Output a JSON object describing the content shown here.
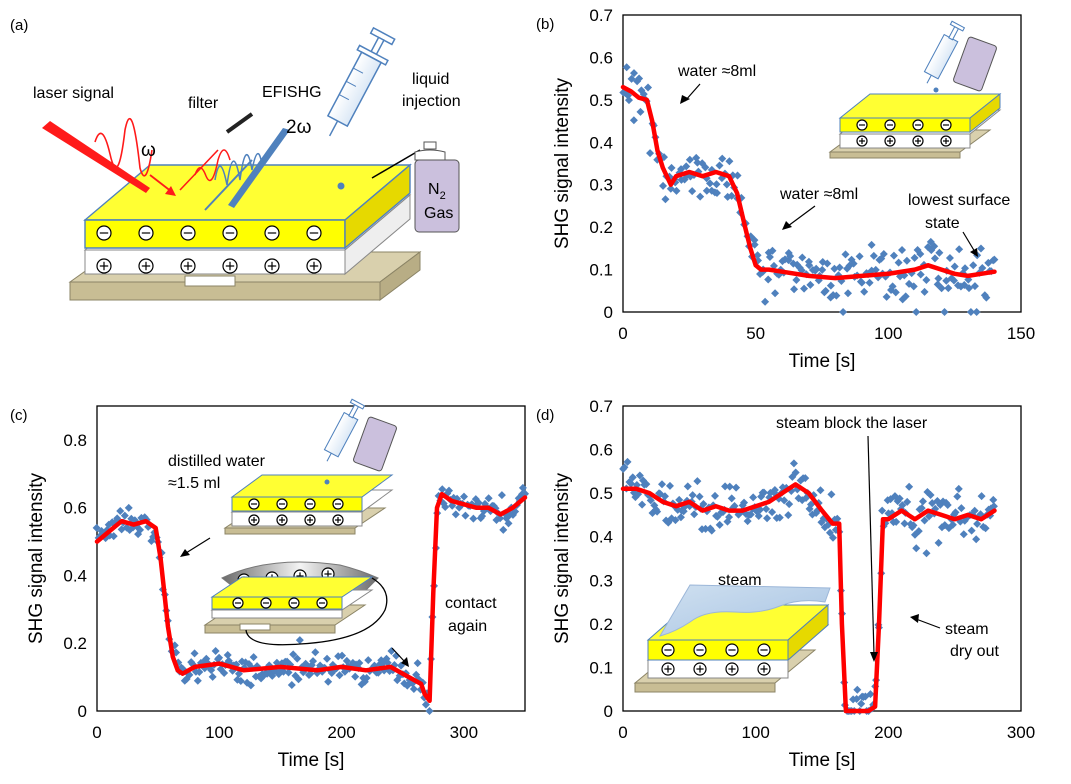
{
  "panel_a": {
    "label": "(a)",
    "labels": {
      "laser": "laser signal",
      "omega": "ω",
      "filter": "filter",
      "efishg": "EFISHG",
      "two_omega": "2ω",
      "liquid_1": "liquid",
      "liquid_2": "injection",
      "n2_1": "N",
      "n2_sub": "2",
      "n2_2": "Gas"
    }
  },
  "chart_data": [
    {
      "id": "b",
      "panel_label": "(b)",
      "type": "scatter",
      "xlabel": "Time [s]",
      "ylabel": "SHG signal intensity",
      "xlim": [
        0,
        150
      ],
      "ylim": [
        0,
        0.7
      ],
      "xticks": [
        0,
        50,
        100,
        150
      ],
      "yticks": [
        0,
        0.1,
        0.2,
        0.3,
        0.4,
        0.5,
        0.6,
        0.7
      ],
      "ytick_decimals": 1,
      "series": [
        {
          "kind": "scatter",
          "color": "#4F81BD",
          "mode": "noise",
          "seed": 11,
          "amp": 0.045,
          "count": 220,
          "xmin": 0,
          "xmax": 140
        },
        {
          "kind": "line",
          "color": "#FF0000",
          "x": [
            0,
            3,
            6,
            9,
            11,
            13,
            15,
            18,
            20,
            25,
            30,
            35,
            40,
            43,
            46,
            48,
            50,
            52,
            55,
            60,
            70,
            80,
            90,
            100,
            110,
            115,
            120,
            125,
            130,
            135,
            140
          ],
          "y": [
            0.53,
            0.52,
            0.505,
            0.5,
            0.45,
            0.38,
            0.34,
            0.3,
            0.32,
            0.33,
            0.32,
            0.33,
            0.32,
            0.28,
            0.2,
            0.15,
            0.11,
            0.1,
            0.1,
            0.095,
            0.085,
            0.08,
            0.085,
            0.09,
            0.1,
            0.11,
            0.1,
            0.09,
            0.085,
            0.09,
            0.095
          ]
        }
      ],
      "annotations": [
        {
          "text": "water ≈8ml"
        },
        {
          "text": "water ≈8ml"
        },
        {
          "text": "lowest surface"
        },
        {
          "text": "state"
        }
      ]
    },
    {
      "id": "c",
      "panel_label": "(c)",
      "type": "scatter",
      "xlabel": "Time [s]",
      "ylabel": "SHG signal intensity",
      "xlim": [
        0,
        350
      ],
      "ylim": [
        0,
        0.9
      ],
      "xticks": [
        0,
        100,
        200,
        300
      ],
      "yticks": [
        0,
        0.2,
        0.4,
        0.6,
        0.8
      ],
      "ytick_decimals": 1,
      "series": [
        {
          "kind": "scatter",
          "color": "#4F81BD",
          "mode": "noise",
          "seed": 23,
          "amp": 0.03,
          "count": 260,
          "xmin": 0,
          "xmax": 350
        },
        {
          "kind": "line",
          "color": "#FF0000",
          "x": [
            0,
            10,
            20,
            30,
            40,
            48,
            52,
            55,
            58,
            62,
            66,
            70,
            80,
            100,
            120,
            150,
            180,
            200,
            220,
            240,
            255,
            265,
            268,
            272,
            275,
            278,
            282,
            290,
            300,
            310,
            320,
            330,
            340,
            350
          ],
          "y": [
            0.5,
            0.53,
            0.56,
            0.55,
            0.56,
            0.54,
            0.45,
            0.35,
            0.25,
            0.16,
            0.12,
            0.11,
            0.13,
            0.14,
            0.12,
            0.13,
            0.12,
            0.13,
            0.12,
            0.13,
            0.1,
            0.08,
            0.05,
            0.03,
            0.35,
            0.6,
            0.64,
            0.62,
            0.61,
            0.6,
            0.6,
            0.58,
            0.6,
            0.63
          ]
        }
      ],
      "annotations": [
        {
          "text": "distilled water"
        },
        {
          "text": "≈1.5 ml"
        },
        {
          "text": "contact"
        },
        {
          "text": "again"
        }
      ]
    },
    {
      "id": "d",
      "panel_label": "(d)",
      "type": "scatter",
      "xlabel": "Time [s]",
      "ylabel": "SHG signal intensity",
      "xlim": [
        0,
        300
      ],
      "ylim": [
        0,
        0.7
      ],
      "xticks": [
        0,
        100,
        200,
        300
      ],
      "yticks": [
        0,
        0.1,
        0.2,
        0.3,
        0.4,
        0.5,
        0.6,
        0.7
      ],
      "ytick_decimals": 1,
      "series": [
        {
          "kind": "scatter",
          "color": "#4F81BD",
          "mode": "noise",
          "seed": 37,
          "amp": 0.04,
          "count": 240,
          "xmin": 0,
          "xmax": 280
        },
        {
          "kind": "line",
          "color": "#FF0000",
          "x": [
            0,
            10,
            20,
            30,
            40,
            50,
            60,
            70,
            80,
            90,
            100,
            110,
            120,
            130,
            140,
            150,
            158,
            163,
            165,
            168,
            172,
            178,
            185,
            190,
            193,
            196,
            200,
            210,
            220,
            230,
            240,
            250,
            260,
            270,
            280
          ],
          "y": [
            0.51,
            0.51,
            0.5,
            0.48,
            0.47,
            0.48,
            0.46,
            0.47,
            0.46,
            0.46,
            0.47,
            0.48,
            0.5,
            0.52,
            0.5,
            0.46,
            0.43,
            0.43,
            0.2,
            0.0,
            0.0,
            0.0,
            0.0,
            0.01,
            0.2,
            0.44,
            0.44,
            0.46,
            0.44,
            0.46,
            0.45,
            0.44,
            0.45,
            0.44,
            0.46
          ]
        }
      ],
      "annotations": [
        {
          "text": "steam block the laser"
        },
        {
          "text": "steam"
        },
        {
          "text": "dry out"
        },
        {
          "text": "steam"
        }
      ]
    }
  ]
}
